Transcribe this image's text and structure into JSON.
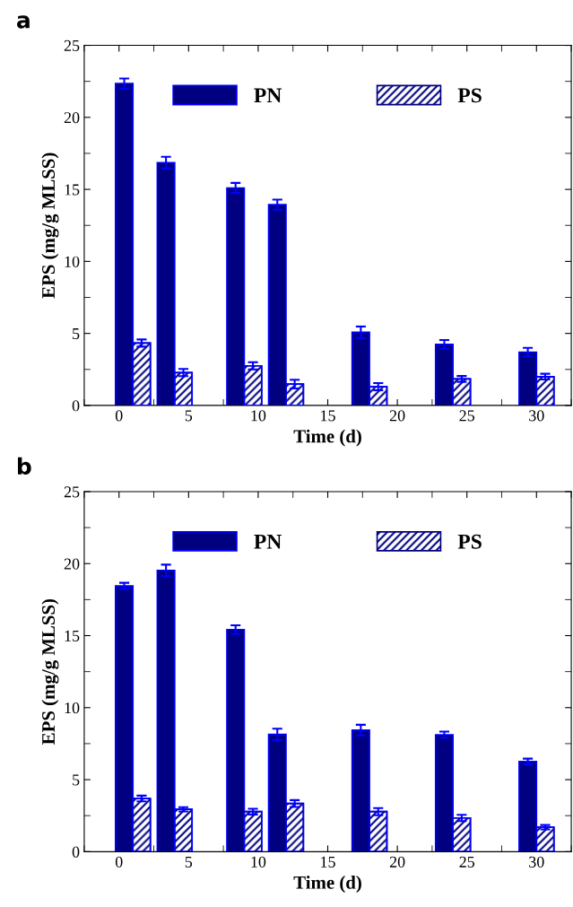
{
  "chart_data": [
    {
      "type": "bar",
      "annotations": [
        "a"
      ],
      "xlabel": "Time (d)",
      "ylabel": "EPS (mg/g MLSS)",
      "x": [
        1,
        4,
        9,
        12,
        18,
        24,
        30
      ],
      "series": [
        {
          "name": "PN",
          "color": "#000080",
          "values": [
            22.35,
            16.86,
            15.1,
            13.94,
            5.08,
            4.24,
            3.7
          ],
          "errors": [
            0.35,
            0.4,
            0.35,
            0.35,
            0.4,
            0.3,
            0.3
          ]
        },
        {
          "name": "PS",
          "color": "#000080",
          "values": [
            4.33,
            2.28,
            2.75,
            1.48,
            1.3,
            1.84,
            2.0
          ],
          "errors": [
            0.25,
            0.25,
            0.25,
            0.3,
            0.25,
            0.2,
            0.2
          ]
        }
      ],
      "xlim": [
        -2.5,
        32.5
      ],
      "xticks": [
        0,
        5,
        10,
        15,
        20,
        25,
        30
      ],
      "ylim": [
        0,
        25
      ],
      "yticks": [
        0,
        5,
        10,
        15,
        20,
        25
      ],
      "legend": "top",
      "grid": false
    },
    {
      "type": "bar",
      "annotations": [
        "b"
      ],
      "xlabel": "Time (d)",
      "ylabel": "EPS (mg/g MLSS)",
      "x": [
        1,
        4,
        9,
        12,
        18,
        24,
        30
      ],
      "series": [
        {
          "name": "PN",
          "color": "#000080",
          "values": [
            18.45,
            19.53,
            15.42,
            8.14,
            8.44,
            8.12,
            6.26
          ],
          "errors": [
            0.22,
            0.4,
            0.3,
            0.4,
            0.37,
            0.22,
            0.2
          ]
        },
        {
          "name": "PS",
          "color": "#000080",
          "values": [
            3.69,
            2.94,
            2.78,
            3.34,
            2.78,
            2.34,
            1.7
          ],
          "errors": [
            0.2,
            0.15,
            0.2,
            0.24,
            0.25,
            0.22,
            0.15
          ]
        }
      ],
      "xlim": [
        -2.5,
        32.5
      ],
      "xticks": [
        0,
        5,
        10,
        15,
        20,
        25,
        30
      ],
      "ylim": [
        0,
        25
      ],
      "yticks": [
        0,
        5,
        10,
        15,
        20,
        25
      ],
      "legend": "top",
      "grid": false
    }
  ]
}
